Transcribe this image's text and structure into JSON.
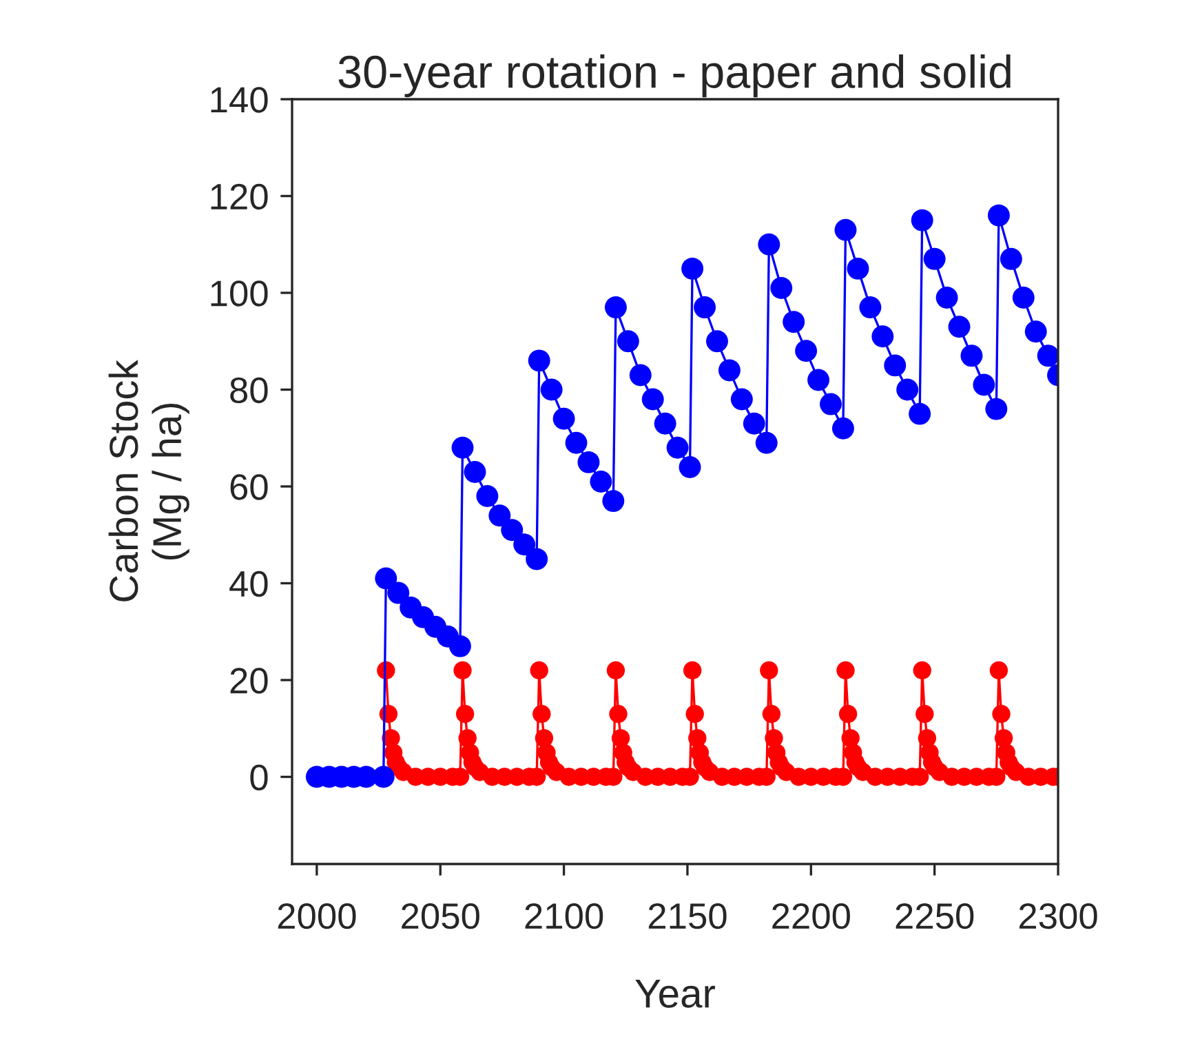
{
  "chart_data": {
    "type": "line",
    "title": "30-year rotation - paper and solid",
    "xlabel": "Year",
    "ylabel": "Carbon Stock\n(Mg / ha)",
    "xlim": [
      1990,
      2300
    ],
    "xticks": [
      2000,
      2050,
      2100,
      2150,
      2200,
      2250,
      2300
    ],
    "ylim": [
      -18,
      140
    ],
    "yticks": [
      0,
      20,
      40,
      60,
      80,
      100,
      120,
      140
    ],
    "marker": "circle",
    "line_style": "solid",
    "grid": false,
    "legend": false,
    "series": [
      {
        "color": "#ff0000",
        "x": [
          2028,
          2029,
          2030,
          2031,
          2032,
          2033,
          2035,
          2040,
          2045,
          2050,
          2055,
          2058,
          2059,
          2060,
          2061,
          2062,
          2063,
          2064,
          2066,
          2071,
          2076,
          2081,
          2086,
          2089,
          2090,
          2091,
          2092,
          2093,
          2094,
          2095,
          2097,
          2102,
          2107,
          2112,
          2117,
          2120,
          2121,
          2122,
          2123,
          2124,
          2125,
          2126,
          2128,
          2133,
          2138,
          2143,
          2148,
          2151,
          2152,
          2153,
          2154,
          2155,
          2156,
          2157,
          2159,
          2164,
          2169,
          2174,
          2179,
          2182,
          2183,
          2184,
          2185,
          2186,
          2187,
          2188,
          2190,
          2195,
          2200,
          2205,
          2210,
          2213,
          2214,
          2215,
          2216,
          2217,
          2218,
          2219,
          2221,
          2226,
          2231,
          2236,
          2241,
          2244,
          2245,
          2246,
          2247,
          2248,
          2249,
          2250,
          2252,
          2257,
          2262,
          2267,
          2272,
          2275,
          2276,
          2277,
          2278,
          2279,
          2280,
          2281,
          2283,
          2288,
          2293,
          2298,
          2300
        ],
        "values": [
          22,
          13,
          8,
          5,
          3,
          2,
          1,
          0,
          0,
          0,
          0,
          0,
          22,
          13,
          8,
          5,
          3,
          2,
          1,
          0,
          0,
          0,
          0,
          0,
          22,
          13,
          8,
          5,
          3,
          2,
          1,
          0,
          0,
          0,
          0,
          0,
          22,
          13,
          8,
          5,
          3,
          2,
          1,
          0,
          0,
          0,
          0,
          0,
          22,
          13,
          8,
          5,
          3,
          2,
          1,
          0,
          0,
          0,
          0,
          0,
          22,
          13,
          8,
          5,
          3,
          2,
          1,
          0,
          0,
          0,
          0,
          0,
          22,
          13,
          8,
          5,
          3,
          2,
          1,
          0,
          0,
          0,
          0,
          0,
          22,
          13,
          8,
          5,
          3,
          2,
          1,
          0,
          0,
          0,
          0,
          0,
          22,
          13,
          8,
          5,
          3,
          2,
          1,
          0,
          0,
          0,
          0
        ]
      },
      {
        "color": "#0000ff",
        "x": [
          2000,
          2005,
          2010,
          2015,
          2020,
          2027,
          2028,
          2033,
          2038,
          2043,
          2048,
          2053,
          2058,
          2059,
          2064,
          2069,
          2074,
          2079,
          2084,
          2089,
          2090,
          2095,
          2100,
          2105,
          2110,
          2115,
          2120,
          2121,
          2126,
          2131,
          2136,
          2141,
          2146,
          2151,
          2152,
          2157,
          2162,
          2167,
          2172,
          2177,
          2182,
          2183,
          2188,
          2193,
          2198,
          2203,
          2208,
          2213,
          2214,
          2219,
          2224,
          2229,
          2234,
          2239,
          2244,
          2245,
          2250,
          2255,
          2260,
          2265,
          2270,
          2275,
          2276,
          2281,
          2286,
          2291,
          2296,
          2300
        ],
        "values": [
          0,
          0,
          0,
          0,
          0,
          0,
          41,
          38,
          35,
          33,
          31,
          29,
          27,
          68,
          63,
          58,
          54,
          51,
          48,
          45,
          86,
          80,
          74,
          69,
          65,
          61,
          57,
          97,
          90,
          83,
          78,
          73,
          68,
          64,
          105,
          97,
          90,
          84,
          78,
          73,
          69,
          110,
          101,
          94,
          88,
          82,
          77,
          72,
          113,
          105,
          97,
          91,
          85,
          80,
          75,
          115,
          107,
          99,
          93,
          87,
          81,
          76,
          116,
          107,
          99,
          92,
          87,
          83
        ]
      }
    ]
  }
}
